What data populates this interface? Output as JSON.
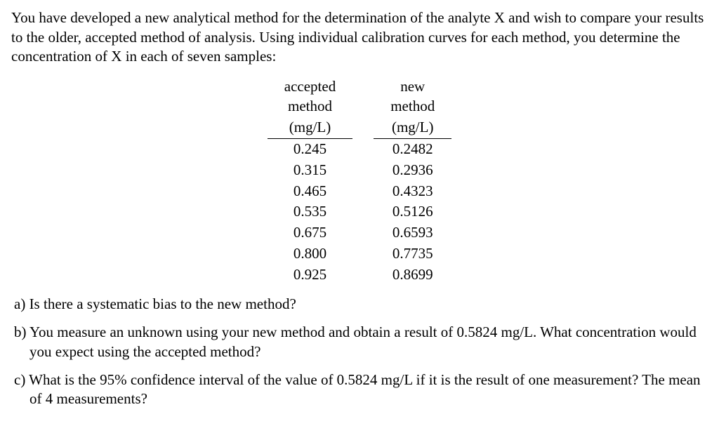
{
  "intro": "You have developed a new analytical method for the determination of the analyte X and wish to compare your results to the older, accepted method of analysis. Using individual calibration curves for each method, you determine the concentration of X in each of seven samples:",
  "table": {
    "col1": {
      "label": "accepted method",
      "unit": "(mg/L)"
    },
    "col2": {
      "label": "new method",
      "unit": "(mg/L)"
    },
    "rows": [
      {
        "a": "0.245",
        "b": "0.2482"
      },
      {
        "a": "0.315",
        "b": "0.2936"
      },
      {
        "a": "0.465",
        "b": "0.4323"
      },
      {
        "a": "0.535",
        "b": "0.5126"
      },
      {
        "a": "0.675",
        "b": "0.6593"
      },
      {
        "a": "0.800",
        "b": "0.7735"
      },
      {
        "a": "0.925",
        "b": "0.8699"
      }
    ]
  },
  "questions": {
    "a": "a) Is there a systematic bias to the new method?",
    "b": "b) You measure an unknown using your new method and obtain a result of 0.5824 mg/L. What concentration would you expect using the accepted method?",
    "c": "c) What is the 95% confidence interval of the value of 0.5824 mg/L if it is the result of one measurement? The mean of 4 measurements?"
  }
}
